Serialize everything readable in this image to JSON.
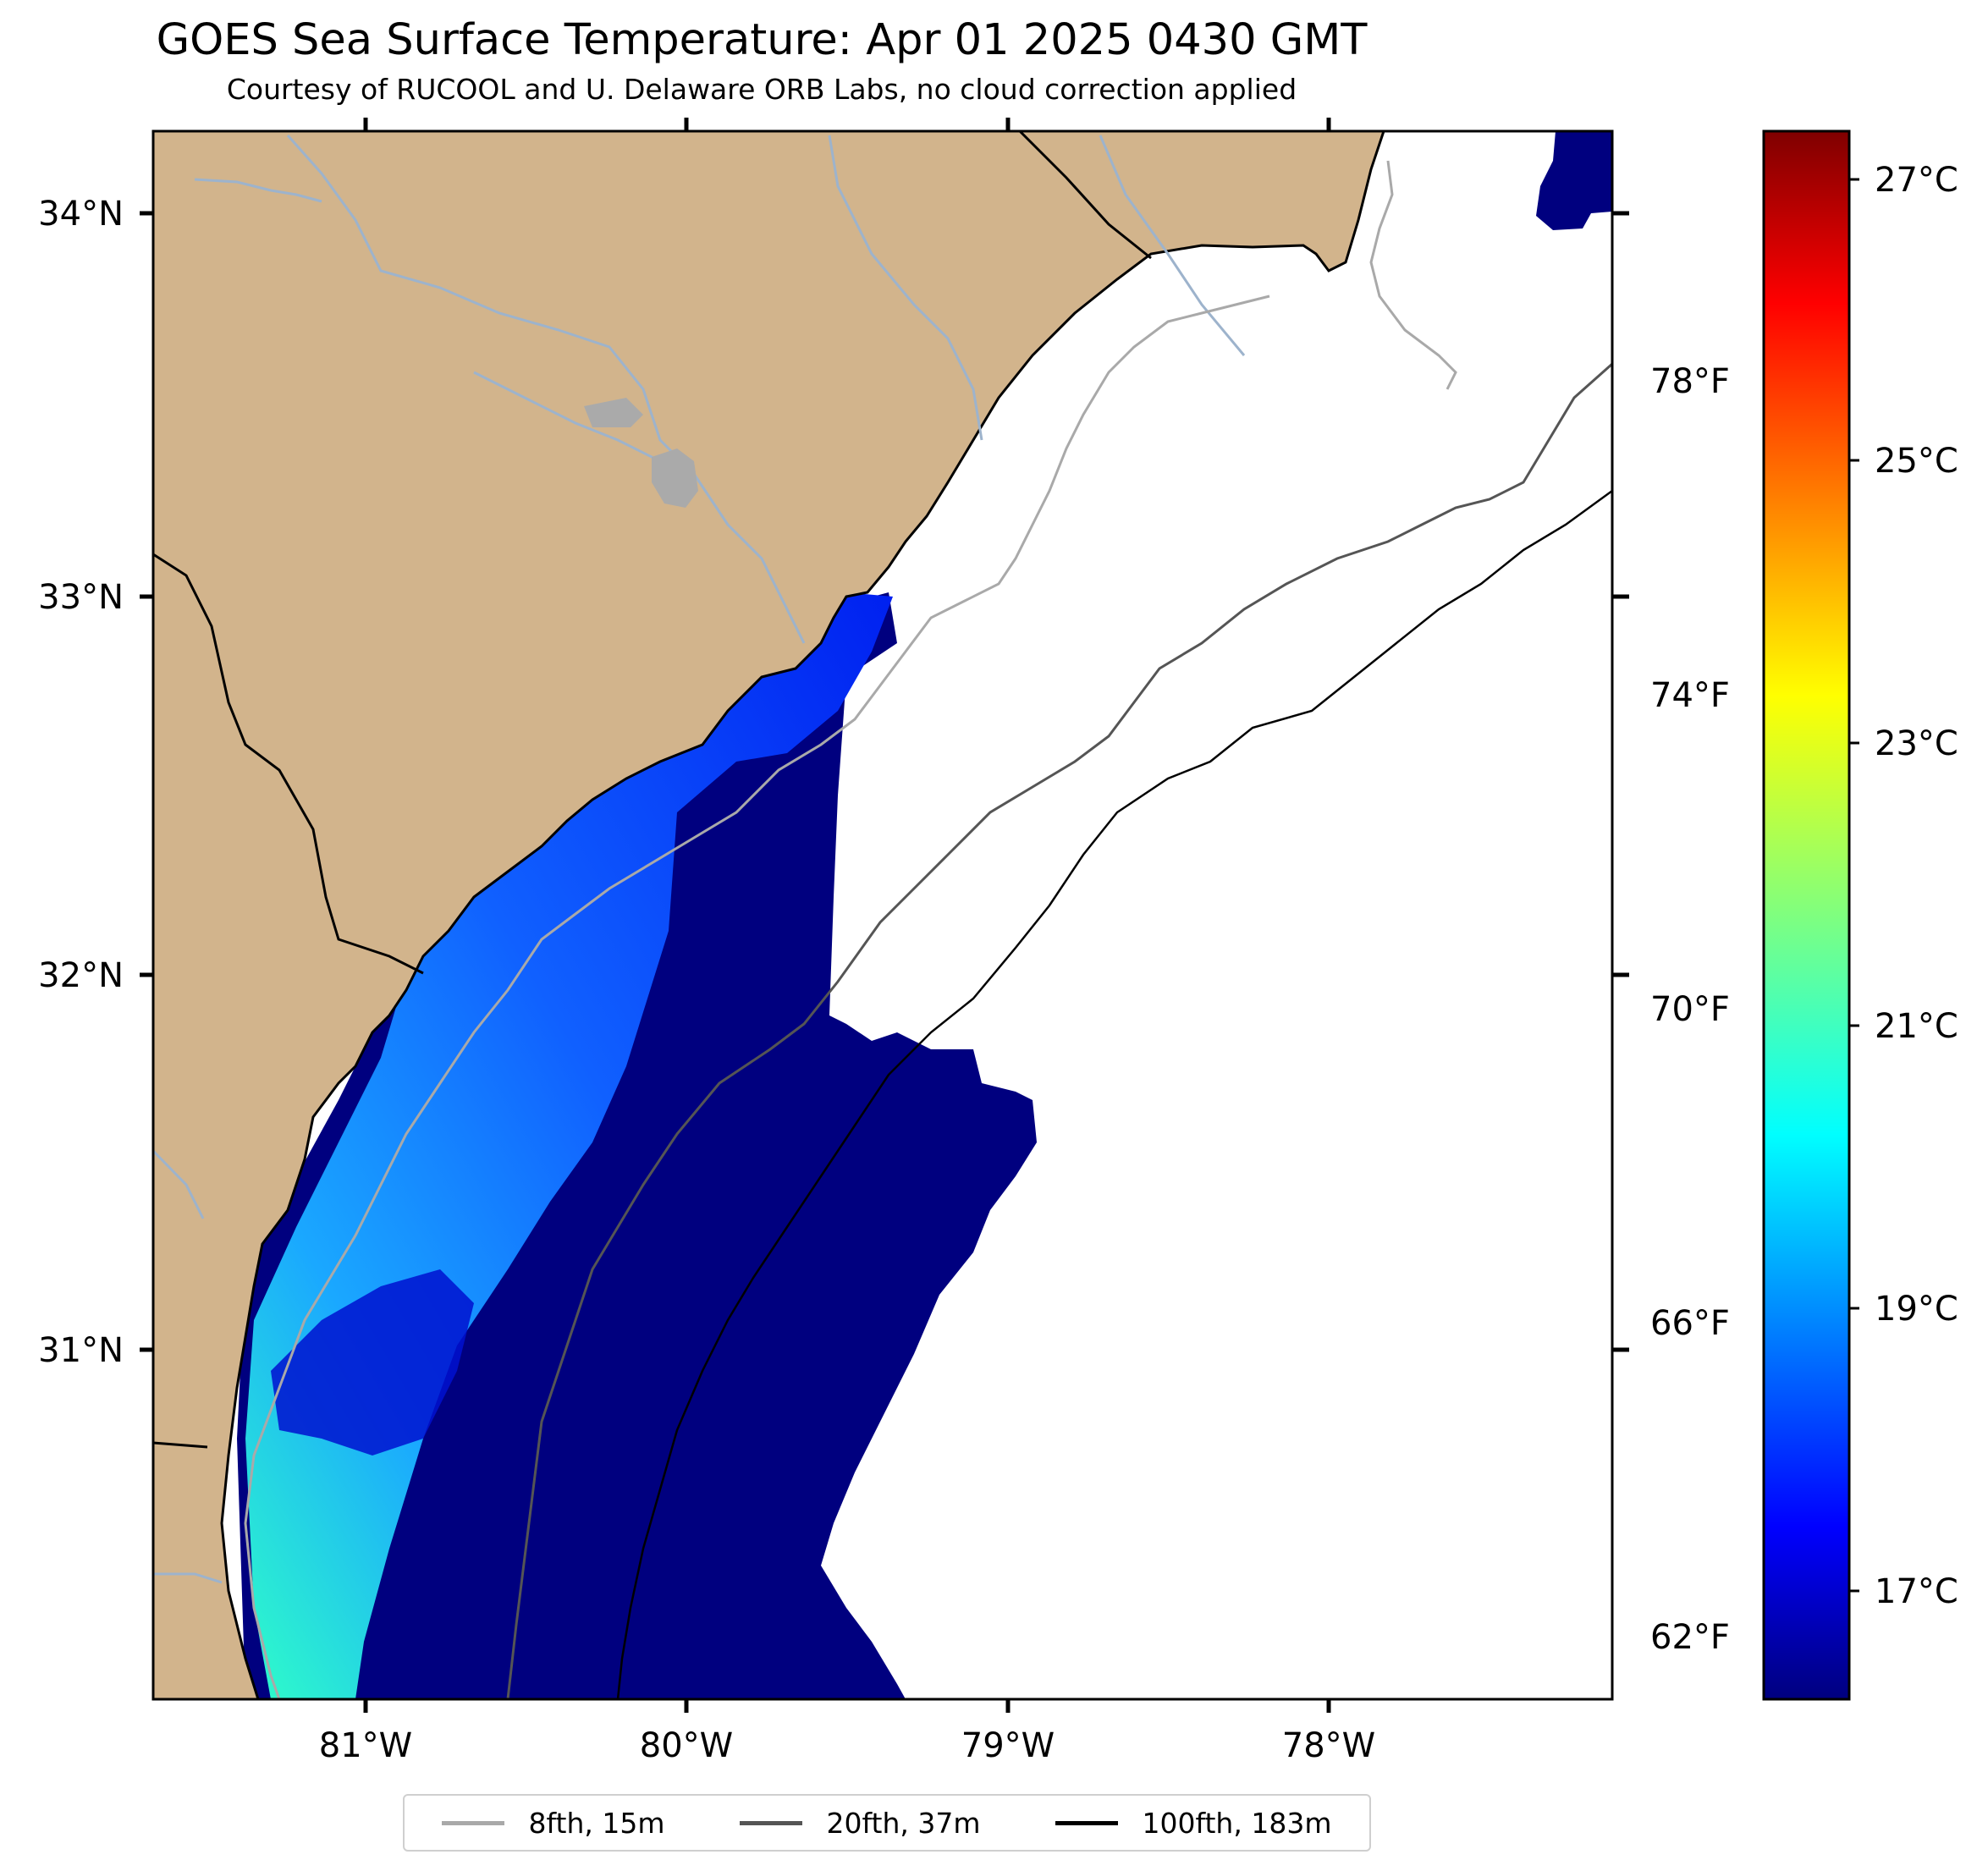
{
  "title": "GOES Sea Surface Temperature: Apr 01 2025 0430 GMT",
  "subtitle": "Courtesy of RUCOOL and U. Delaware ORB Labs, no cloud correction applied",
  "map": {
    "longitude_ticks": [
      "81°W",
      "80°W",
      "79°W",
      "78°W"
    ],
    "latitude_ticks": [
      "34°N",
      "33°N",
      "32°N",
      "31°N"
    ],
    "land_color": "#d2b48c",
    "river_color": "#9db3cc",
    "coast_color": "#000000",
    "no_data_color": "#ffffff"
  },
  "fahrenheit_ticks": [
    "78°F",
    "74°F",
    "70°F",
    "66°F",
    "62°F"
  ],
  "colorbar": {
    "colormap": "jet",
    "celsius_ticks": [
      "27°C",
      "25°C",
      "23°C",
      "21°C",
      "19°C",
      "17°C"
    ],
    "range_c": [
      16.3,
      27.3
    ]
  },
  "legend": [
    {
      "label": "8fth, 15m",
      "color": "#a9a9a9"
    },
    {
      "label": "20fth, 37m",
      "color": "#555555"
    },
    {
      "label": "100fth, 183m",
      "color": "#000000"
    }
  ]
}
